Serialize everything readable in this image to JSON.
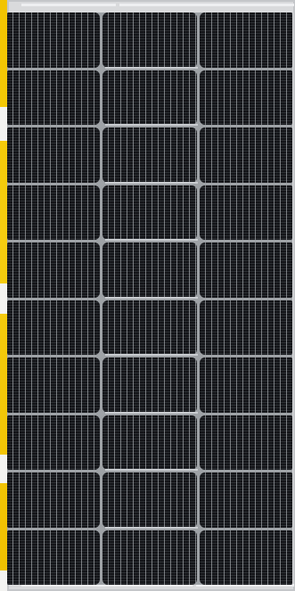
{
  "image": {
    "subject": "solar-panel",
    "rows": 10,
    "columns": 3,
    "colors": {
      "background_strip": "#f2c400",
      "frame": "#d9dadc",
      "cell": "#141519",
      "grid_lines": "#c8cdd2"
    }
  }
}
